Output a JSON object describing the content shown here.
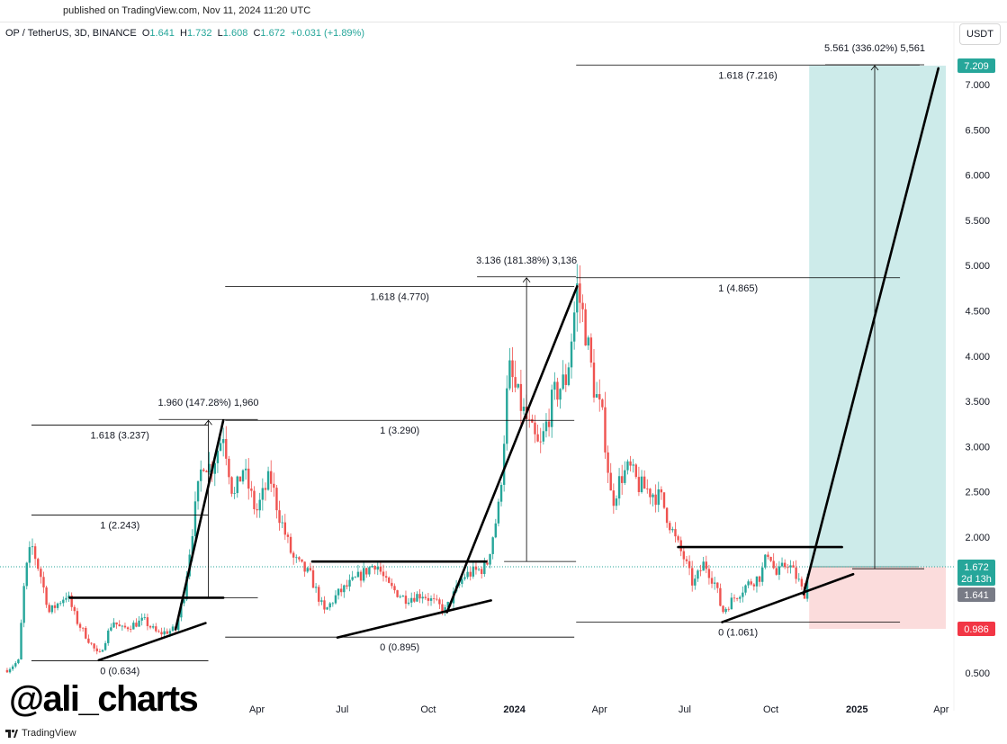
{
  "header": {
    "published": "published on TradingView.com, Nov 11, 2024 11:20 UTC",
    "symbol": "OP / TetherUS, 3D, BINANCE",
    "o_label": "O",
    "o": "1.641",
    "h_label": "H",
    "h": "1.732",
    "l_label": "L",
    "l": "1.608",
    "c_label": "C",
    "c": "1.672",
    "change": "+0.031 (+1.89%)",
    "currency_button": "USDT"
  },
  "watermark": "@ali_charts",
  "footer": {
    "brand": "TradingView"
  },
  "colors": {
    "up": "#26a69a",
    "down": "#ef5350",
    "target_zone": "#cdebea",
    "stop_zone": "#fbdcdc",
    "drawing": "#000000"
  },
  "chart_data": {
    "type": "candlestick",
    "interval": "3D",
    "ylim": [
      0.4,
      7.4
    ],
    "yticks": [
      "7.000",
      "6.500",
      "6.000",
      "5.500",
      "5.000",
      "4.500",
      "4.000",
      "3.500",
      "3.000",
      "2.500",
      "2.000",
      "0.500"
    ],
    "ytick_values": [
      7,
      6.5,
      6,
      5.5,
      5,
      4.5,
      4,
      3.5,
      3,
      2.5,
      2,
      0.5
    ],
    "xticks": [
      {
        "label": "Apr",
        "date": "2023-04-01"
      },
      {
        "label": "Jul",
        "date": "2023-07-01"
      },
      {
        "label": "Oct",
        "date": "2023-10-01"
      },
      {
        "label": "2024",
        "date": "2024-01-01",
        "bold": true
      },
      {
        "label": "Apr",
        "date": "2024-04-01"
      },
      {
        "label": "Jul",
        "date": "2024-07-01"
      },
      {
        "label": "Oct",
        "date": "2024-10-01"
      },
      {
        "label": "2025",
        "date": "2025-01-01",
        "bold": true
      },
      {
        "label": "Apr",
        "date": "2025-04-01"
      }
    ],
    "approx_closes": [
      [
        "2022-07-08",
        0.53
      ],
      [
        "2022-07-20",
        0.63
      ],
      [
        "2022-07-27",
        1.57
      ],
      [
        "2022-08-03",
        1.92
      ],
      [
        "2022-08-13",
        1.57
      ],
      [
        "2022-08-22",
        1.17
      ],
      [
        "2022-09-10",
        1.37
      ],
      [
        "2022-09-20",
        1.08
      ],
      [
        "2022-10-14",
        0.68
      ],
      [
        "2022-10-29",
        1.08
      ],
      [
        "2022-11-07",
        0.98
      ],
      [
        "2022-12-01",
        1.08
      ],
      [
        "2022-12-16",
        0.93
      ],
      [
        "2023-01-04",
        0.98
      ],
      [
        "2023-01-13",
        1.37
      ],
      [
        "2023-01-23",
        2.17
      ],
      [
        "2023-02-02",
        2.86
      ],
      [
        "2023-02-11",
        2.76
      ],
      [
        "2023-02-24",
        3.16
      ],
      [
        "2023-03-07",
        2.42
      ],
      [
        "2023-03-17",
        2.76
      ],
      [
        "2023-03-31",
        2.27
      ],
      [
        "2023-04-15",
        2.67
      ],
      [
        "2023-04-24",
        2.27
      ],
      [
        "2023-05-09",
        1.77
      ],
      [
        "2023-05-28",
        1.57
      ],
      [
        "2023-06-12",
        1.17
      ],
      [
        "2023-06-26",
        1.37
      ],
      [
        "2023-07-20",
        1.57
      ],
      [
        "2023-08-06",
        1.72
      ],
      [
        "2023-08-18",
        1.47
      ],
      [
        "2023-09-06",
        1.32
      ],
      [
        "2023-09-25",
        1.37
      ],
      [
        "2023-10-19",
        1.19
      ],
      [
        "2023-11-08",
        1.57
      ],
      [
        "2023-12-02",
        1.67
      ],
      [
        "2023-12-16",
        2.37
      ],
      [
        "2023-12-26",
        3.86
      ],
      [
        "2024-01-04",
        3.56
      ],
      [
        "2024-01-19",
        3.16
      ],
      [
        "2024-01-28",
        2.96
      ],
      [
        "2024-02-12",
        3.56
      ],
      [
        "2024-02-26",
        3.76
      ],
      [
        "2024-03-08",
        4.75
      ],
      [
        "2024-03-16",
        4.36
      ],
      [
        "2024-03-26",
        3.66
      ],
      [
        "2024-04-05",
        3.26
      ],
      [
        "2024-04-14",
        2.37
      ],
      [
        "2024-04-24",
        2.67
      ],
      [
        "2024-05-03",
        2.76
      ],
      [
        "2024-05-13",
        2.57
      ],
      [
        "2024-05-23",
        2.52
      ],
      [
        "2024-06-06",
        2.42
      ],
      [
        "2024-06-21",
        1.97
      ],
      [
        "2024-06-30",
        1.77
      ],
      [
        "2024-07-10",
        1.47
      ],
      [
        "2024-07-22",
        1.72
      ],
      [
        "2024-08-03",
        1.47
      ],
      [
        "2024-08-10",
        1.17
      ],
      [
        "2024-08-22",
        1.32
      ],
      [
        "2024-09-05",
        1.47
      ],
      [
        "2024-09-20",
        1.57
      ],
      [
        "2024-09-29",
        1.87
      ],
      [
        "2024-10-06",
        1.57
      ],
      [
        "2024-10-19",
        1.72
      ],
      [
        "2024-11-02",
        1.47
      ],
      [
        "2024-11-05",
        1.32
      ],
      [
        "2024-11-11",
        1.672
      ]
    ],
    "last_price": {
      "value": "1.672",
      "countdown": "2d 13h",
      "price": 1.672
    },
    "open_price": {
      "value": "1.641"
    },
    "target_price": {
      "value": "7.209",
      "price": 7.209
    },
    "stop_price": {
      "value": "0.986",
      "price": 0.986
    },
    "position": {
      "from": "2024-11-11",
      "to": "2025-04-06",
      "entry": 1.672,
      "target": 7.209,
      "stop": 0.986
    },
    "fib_levels": [
      {
        "label": "1.618 (3.237)",
        "price": 3.237,
        "from": "2022-08-03",
        "to": "2023-02-08"
      },
      {
        "label": "1 (2.243)",
        "price": 2.243,
        "from": "2022-08-03",
        "to": "2023-02-08"
      },
      {
        "label": "0 (0.634)",
        "price": 0.634,
        "from": "2022-08-03",
        "to": "2023-02-08"
      },
      {
        "label": "1.618 (4.770)",
        "price": 4.77,
        "from": "2023-02-26",
        "to": "2024-03-05"
      },
      {
        "label": "1 (3.290)",
        "price": 3.29,
        "from": "2023-02-26",
        "to": "2024-03-05"
      },
      {
        "label": "0 (0.895)",
        "price": 0.895,
        "from": "2023-02-26",
        "to": "2024-03-05"
      },
      {
        "label": "1.618 (7.216)",
        "price": 7.216,
        "from": "2024-03-07",
        "to": "2025-03-09"
      },
      {
        "label": "1 (4.865)",
        "price": 4.865,
        "from": "2024-03-07",
        "to": "2025-02-16"
      },
      {
        "label": "0 (1.061)",
        "price": 1.061,
        "from": "2024-03-07",
        "to": "2025-02-16"
      }
    ],
    "measures": [
      {
        "label": "1.960 (147.28%) 1,960",
        "date": "2023-02-08",
        "from": 1.33,
        "to": 3.29
      },
      {
        "label": "3.136 (181.38%) 3,136",
        "date": "2024-01-14",
        "from": 1.73,
        "to": 4.865
      },
      {
        "label": "5.561 (336.02%) 5,561",
        "date": "2025-01-20",
        "from": 1.65,
        "to": 7.209
      }
    ],
    "trendlines": [
      {
        "from": [
          "2022-09-13",
          1.33
        ],
        "to": [
          "2023-02-24",
          1.33
        ]
      },
      {
        "from": [
          "2022-10-14",
          0.64
        ],
        "to": [
          "2023-02-05",
          1.05
        ]
      },
      {
        "from": [
          "2023-01-04",
          0.98
        ],
        "to": [
          "2023-02-24",
          3.29
        ]
      },
      {
        "from": [
          "2023-05-30",
          1.73
        ],
        "to": [
          "2023-12-02",
          1.73
        ]
      },
      {
        "from": [
          "2023-06-26",
          0.89
        ],
        "to": [
          "2023-12-07",
          1.3
        ]
      },
      {
        "from": [
          "2023-10-21",
          1.17
        ],
        "to": [
          "2024-03-08",
          4.77
        ]
      },
      {
        "from": [
          "2024-06-24",
          1.89
        ],
        "to": [
          "2024-12-16",
          1.89
        ]
      },
      {
        "from": [
          "2024-08-10",
          1.06
        ],
        "to": [
          "2024-12-28",
          1.59
        ]
      },
      {
        "from": [
          "2024-11-05",
          1.37
        ],
        "to": [
          "2025-03-29",
          7.18
        ]
      }
    ]
  }
}
